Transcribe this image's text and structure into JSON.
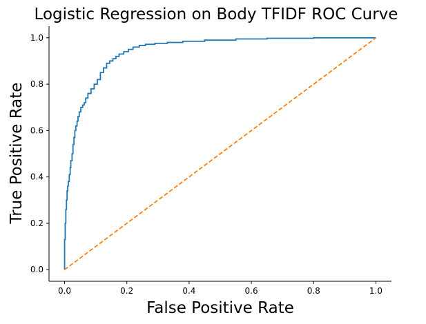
{
  "chart_data": {
    "type": "line",
    "title": "Logistic Regression on Body TFIDF ROC Curve",
    "xlabel": "False Positive Rate",
    "ylabel": "True Positive Rate",
    "xlim": [
      -0.05,
      1.05
    ],
    "ylim": [
      -0.05,
      1.05
    ],
    "xticks": [
      "0.0",
      "0.2",
      "0.4",
      "0.6",
      "0.8",
      "1.0"
    ],
    "yticks": [
      "0.0",
      "0.2",
      "0.4",
      "0.6",
      "0.8",
      "1.0"
    ],
    "grid": false,
    "series": [
      {
        "style": "solid",
        "color": "#1f77b4",
        "x": [
          0.0,
          0.0,
          0.002,
          0.002,
          0.004,
          0.004,
          0.006,
          0.006,
          0.008,
          0.008,
          0.01,
          0.012,
          0.015,
          0.018,
          0.02,
          0.024,
          0.027,
          0.03,
          0.033,
          0.036,
          0.04,
          0.043,
          0.047,
          0.052,
          0.058,
          0.063,
          0.068,
          0.075,
          0.085,
          0.095,
          0.105,
          0.115,
          0.125,
          0.135,
          0.145,
          0.155,
          0.165,
          0.175,
          0.19,
          0.205,
          0.22,
          0.24,
          0.26,
          0.29,
          0.33,
          0.38,
          0.45,
          0.55,
          0.65,
          0.8,
          1.0
        ],
        "y": [
          0.0,
          0.13,
          0.13,
          0.2,
          0.2,
          0.26,
          0.26,
          0.3,
          0.3,
          0.34,
          0.36,
          0.38,
          0.41,
          0.44,
          0.47,
          0.5,
          0.54,
          0.57,
          0.6,
          0.62,
          0.64,
          0.66,
          0.68,
          0.7,
          0.71,
          0.72,
          0.74,
          0.76,
          0.78,
          0.8,
          0.82,
          0.85,
          0.87,
          0.89,
          0.9,
          0.91,
          0.92,
          0.93,
          0.94,
          0.95,
          0.96,
          0.967,
          0.972,
          0.976,
          0.98,
          0.985,
          0.99,
          0.995,
          0.998,
          1.0,
          1.0
        ]
      },
      {
        "style": "dashed",
        "color": "#ff7f0e",
        "x": [
          0,
          1
        ],
        "y": [
          0,
          1
        ]
      }
    ]
  }
}
